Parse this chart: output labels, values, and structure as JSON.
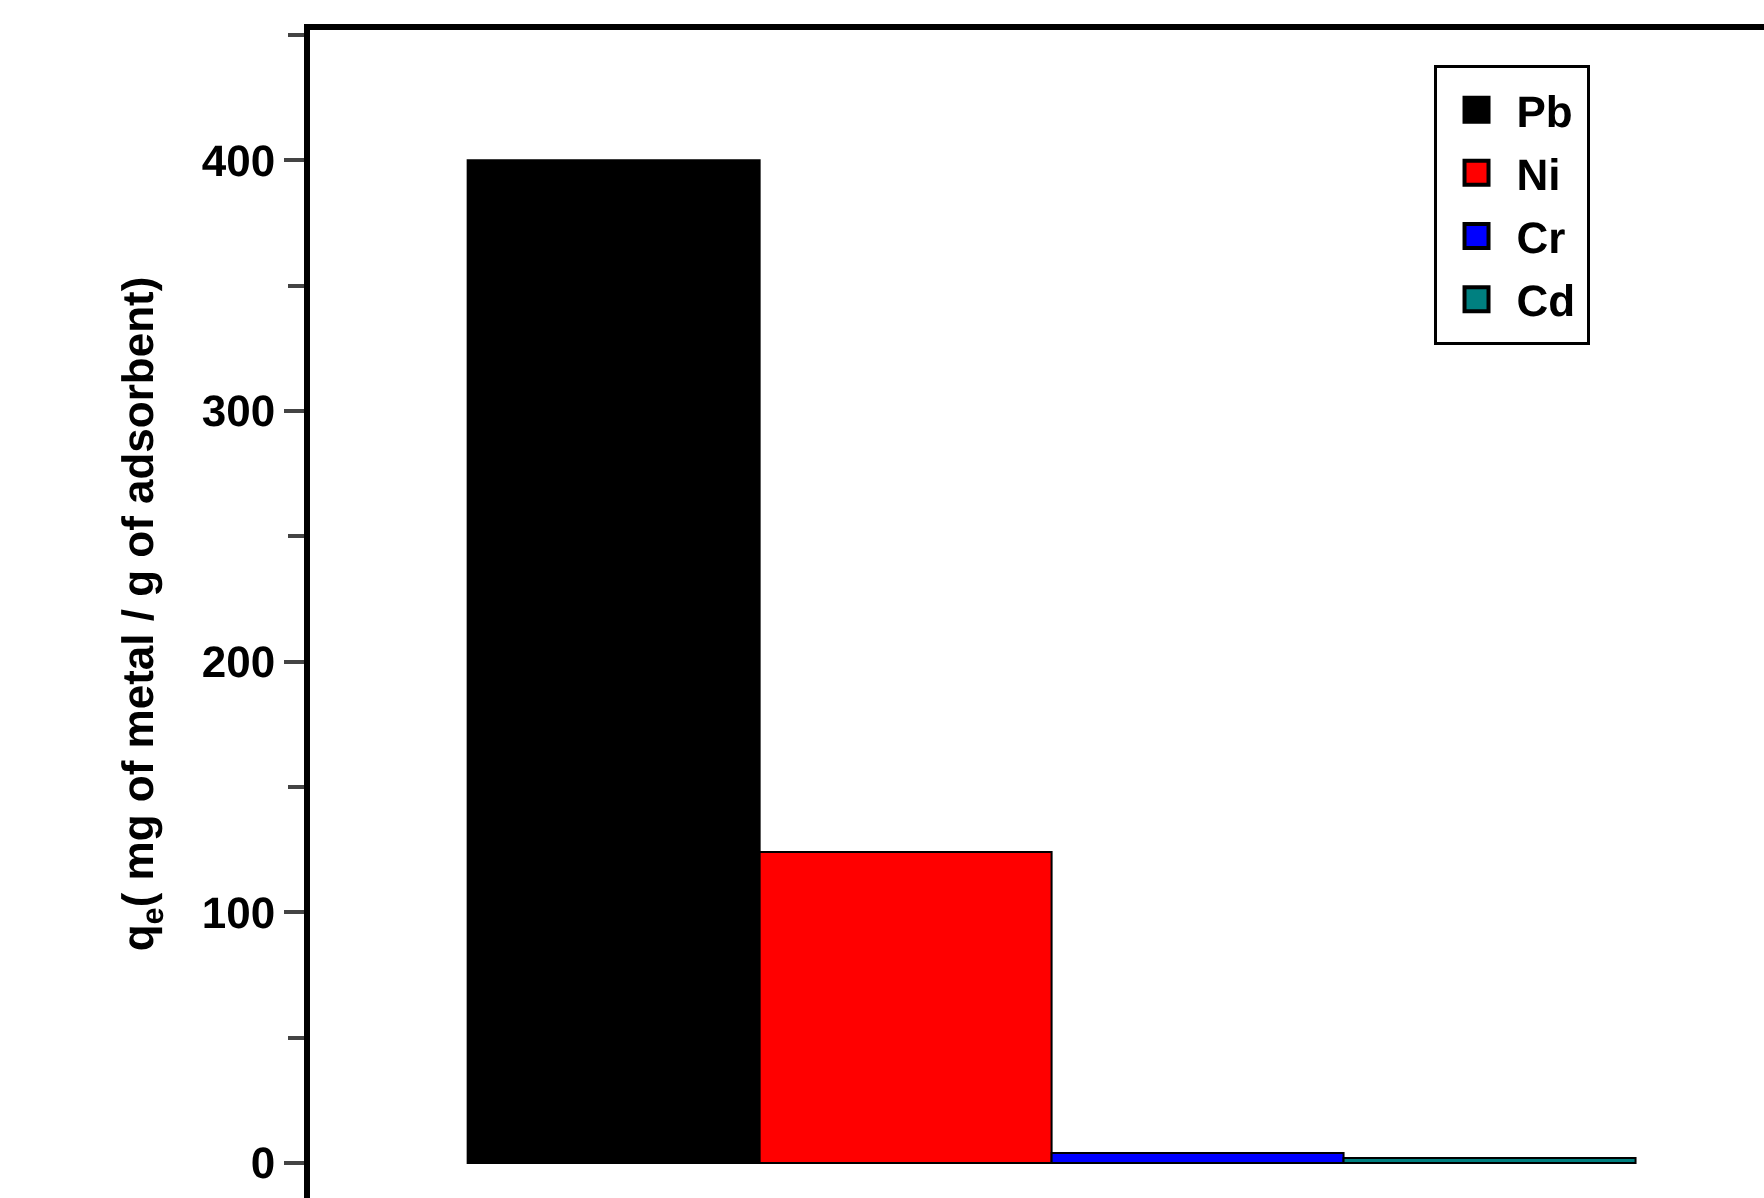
{
  "chart_data": {
    "type": "bar",
    "ylabel": "q$_{e}$( mg of metal / g of adsorbent)",
    "categories": [
      null,
      null,
      null,
      null
    ],
    "series": [
      {
        "name": "Pb",
        "color": "#000000",
        "values": [
          400,
          null,
          null,
          null
        ]
      },
      {
        "name": "Ni",
        "color": "#ff0000",
        "values": [
          null,
          124,
          null,
          null
        ]
      },
      {
        "name": "Cr",
        "color": "#0000ff",
        "values": [
          null,
          null,
          4,
          null
        ]
      },
      {
        "name": "Cd",
        "color": "#008080",
        "values": [
          null,
          null,
          null,
          2
        ]
      }
    ],
    "ylim": [
      -14,
      452
    ],
    "yticks": [
      0,
      100,
      200,
      300,
      400
    ],
    "legend": "top right",
    "grid": false
  }
}
